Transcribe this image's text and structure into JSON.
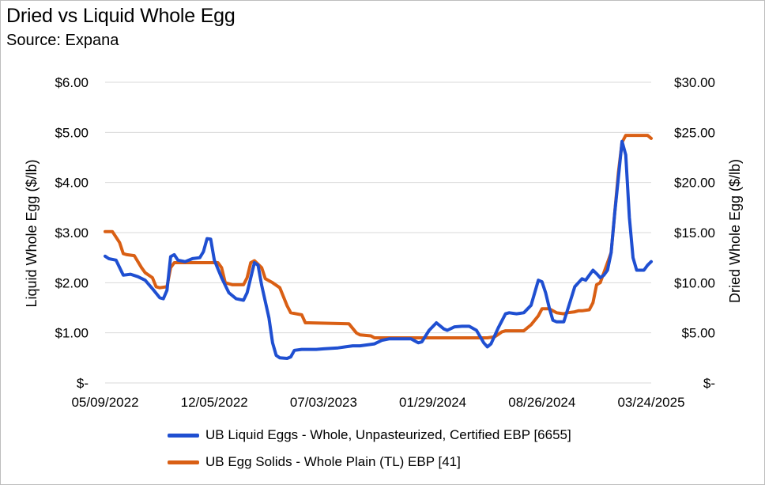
{
  "title": "Dried vs Liquid Whole Egg",
  "subtitle": "Source: Expana",
  "colors": {
    "liquid": "#1f4fd1",
    "dried": "#d95f14",
    "grid": "#d9d9d9"
  },
  "chart_data": {
    "type": "line",
    "title": "Dried vs Liquid Whole Egg",
    "subtitle": "Source: Expana",
    "ylabel_left": "Liquid Whole Egg ($/lb)",
    "ylabel_right": "Dried Whole Egg ($/lb)",
    "ylim_left": [
      0,
      6
    ],
    "ylim_right": [
      0,
      30
    ],
    "yticks_left": [
      "$-",
      "$1.00",
      "$2.00",
      "$3.00",
      "$4.00",
      "$5.00",
      "$6.00"
    ],
    "yticks_right": [
      "$-",
      "$5.00",
      "$10.00",
      "$15.00",
      "$20.00",
      "$25.00",
      "$30.00"
    ],
    "xlim": [
      "2022-05-09",
      "2025-03-24"
    ],
    "xticks": [
      "05/09/2022",
      "12/05/2022",
      "07/03/2023",
      "01/29/2024",
      "08/26/2024",
      "03/24/2025"
    ],
    "grid": true,
    "legend_position": "bottom",
    "series": [
      {
        "name": "UB Liquid Eggs - Whole, Unpasteurized, Certified EBP [6655]",
        "axis": "left",
        "points": [
          [
            "2022-05-09",
            2.53
          ],
          [
            "2022-05-16",
            2.48
          ],
          [
            "2022-05-30",
            2.45
          ],
          [
            "2022-06-13",
            2.15
          ],
          [
            "2022-06-27",
            2.17
          ],
          [
            "2022-07-11",
            2.12
          ],
          [
            "2022-07-25",
            2.05
          ],
          [
            "2022-08-08",
            1.88
          ],
          [
            "2022-08-22",
            1.7
          ],
          [
            "2022-08-29",
            1.68
          ],
          [
            "2022-09-05",
            1.85
          ],
          [
            "2022-09-12",
            2.52
          ],
          [
            "2022-09-19",
            2.56
          ],
          [
            "2022-09-26",
            2.45
          ],
          [
            "2022-10-10",
            2.42
          ],
          [
            "2022-10-24",
            2.48
          ],
          [
            "2022-11-07",
            2.5
          ],
          [
            "2022-11-14",
            2.62
          ],
          [
            "2022-11-21",
            2.88
          ],
          [
            "2022-11-28",
            2.87
          ],
          [
            "2022-12-05",
            2.45
          ],
          [
            "2022-12-19",
            2.1
          ],
          [
            "2023-01-02",
            1.8
          ],
          [
            "2023-01-16",
            1.68
          ],
          [
            "2023-01-30",
            1.65
          ],
          [
            "2023-02-06",
            1.8
          ],
          [
            "2023-02-13",
            2.1
          ],
          [
            "2023-02-20",
            2.4
          ],
          [
            "2023-02-27",
            2.35
          ],
          [
            "2023-03-06",
            1.95
          ],
          [
            "2023-03-20",
            1.3
          ],
          [
            "2023-03-27",
            0.8
          ],
          [
            "2023-04-03",
            0.55
          ],
          [
            "2023-04-10",
            0.5
          ],
          [
            "2023-04-24",
            0.49
          ],
          [
            "2023-05-01",
            0.52
          ],
          [
            "2023-05-08",
            0.65
          ],
          [
            "2023-05-22",
            0.67
          ],
          [
            "2023-06-19",
            0.67
          ],
          [
            "2023-07-03",
            0.68
          ],
          [
            "2023-07-31",
            0.7
          ],
          [
            "2023-08-14",
            0.72
          ],
          [
            "2023-08-28",
            0.74
          ],
          [
            "2023-09-11",
            0.74
          ],
          [
            "2023-09-25",
            0.76
          ],
          [
            "2023-10-09",
            0.78
          ],
          [
            "2023-10-23",
            0.85
          ],
          [
            "2023-11-06",
            0.88
          ],
          [
            "2023-12-18",
            0.88
          ],
          [
            "2024-01-01",
            0.8
          ],
          [
            "2024-01-08",
            0.82
          ],
          [
            "2024-01-22",
            1.05
          ],
          [
            "2024-02-05",
            1.2
          ],
          [
            "2024-02-19",
            1.08
          ],
          [
            "2024-02-26",
            1.05
          ],
          [
            "2024-03-11",
            1.12
          ],
          [
            "2024-03-25",
            1.13
          ],
          [
            "2024-04-08",
            1.13
          ],
          [
            "2024-04-22",
            1.05
          ],
          [
            "2024-05-06",
            0.8
          ],
          [
            "2024-05-13",
            0.72
          ],
          [
            "2024-05-20",
            0.78
          ],
          [
            "2024-06-03",
            1.1
          ],
          [
            "2024-06-17",
            1.38
          ],
          [
            "2024-06-24",
            1.4
          ],
          [
            "2024-07-08",
            1.38
          ],
          [
            "2024-07-22",
            1.4
          ],
          [
            "2024-08-05",
            1.55
          ],
          [
            "2024-08-19",
            2.05
          ],
          [
            "2024-08-26",
            2.02
          ],
          [
            "2024-09-02",
            1.8
          ],
          [
            "2024-09-09",
            1.5
          ],
          [
            "2024-09-16",
            1.25
          ],
          [
            "2024-09-23",
            1.22
          ],
          [
            "2024-10-07",
            1.22
          ],
          [
            "2024-10-14",
            1.45
          ],
          [
            "2024-10-28",
            1.92
          ],
          [
            "2024-11-04",
            2.0
          ],
          [
            "2024-11-11",
            2.08
          ],
          [
            "2024-11-18",
            2.05
          ],
          [
            "2024-11-25",
            2.15
          ],
          [
            "2024-12-02",
            2.25
          ],
          [
            "2024-12-09",
            2.18
          ],
          [
            "2024-12-16",
            2.1
          ],
          [
            "2024-12-23",
            2.15
          ],
          [
            "2024-12-30",
            2.25
          ],
          [
            "2025-01-06",
            2.6
          ],
          [
            "2025-01-13",
            3.4
          ],
          [
            "2025-01-20",
            4.1
          ],
          [
            "2025-01-27",
            4.82
          ],
          [
            "2025-02-03",
            4.55
          ],
          [
            "2025-02-10",
            3.3
          ],
          [
            "2025-02-17",
            2.5
          ],
          [
            "2025-02-24",
            2.25
          ],
          [
            "2025-03-03",
            2.25
          ],
          [
            "2025-03-10",
            2.25
          ],
          [
            "2025-03-17",
            2.35
          ],
          [
            "2025-03-24",
            2.42
          ]
        ]
      },
      {
        "name": "UB Egg Solids - Whole Plain (TL) EBP [41]",
        "axis": "right",
        "points": [
          [
            "2022-05-09",
            15.1
          ],
          [
            "2022-05-23",
            15.1
          ],
          [
            "2022-06-06",
            14.0
          ],
          [
            "2022-06-13",
            12.9
          ],
          [
            "2022-06-20",
            12.8
          ],
          [
            "2022-07-04",
            12.7
          ],
          [
            "2022-07-18",
            11.5
          ],
          [
            "2022-07-25",
            11.0
          ],
          [
            "2022-08-08",
            10.5
          ],
          [
            "2022-08-15",
            9.6
          ],
          [
            "2022-08-22",
            9.5
          ],
          [
            "2022-09-05",
            9.6
          ],
          [
            "2022-09-12",
            11.5
          ],
          [
            "2022-09-19",
            12.0
          ],
          [
            "2022-10-03",
            12.0
          ],
          [
            "2022-12-12",
            12.0
          ],
          [
            "2022-12-19",
            11.5
          ],
          [
            "2022-12-26",
            10.0
          ],
          [
            "2023-01-09",
            9.8
          ],
          [
            "2023-01-30",
            9.8
          ],
          [
            "2023-02-06",
            10.5
          ],
          [
            "2023-02-13",
            12.0
          ],
          [
            "2023-02-20",
            12.2
          ],
          [
            "2023-03-06",
            11.5
          ],
          [
            "2023-03-13",
            10.4
          ],
          [
            "2023-03-27",
            10.0
          ],
          [
            "2023-04-10",
            9.5
          ],
          [
            "2023-04-24",
            7.7
          ],
          [
            "2023-05-01",
            7.0
          ],
          [
            "2023-05-22",
            6.8
          ],
          [
            "2023-05-29",
            6.0
          ],
          [
            "2023-06-05",
            6.0
          ],
          [
            "2023-08-21",
            5.9
          ],
          [
            "2023-09-04",
            5.0
          ],
          [
            "2023-09-11",
            4.8
          ],
          [
            "2023-10-02",
            4.7
          ],
          [
            "2023-10-09",
            4.5
          ],
          [
            "2024-05-13",
            4.5
          ],
          [
            "2024-05-27",
            4.6
          ],
          [
            "2024-06-10",
            5.1
          ],
          [
            "2024-06-17",
            5.2
          ],
          [
            "2024-07-22",
            5.2
          ],
          [
            "2024-08-05",
            5.8
          ],
          [
            "2024-08-19",
            6.7
          ],
          [
            "2024-08-26",
            7.4
          ],
          [
            "2024-09-09",
            7.4
          ],
          [
            "2024-09-23",
            7.0
          ],
          [
            "2024-10-07",
            6.9
          ],
          [
            "2024-10-14",
            7.0
          ],
          [
            "2024-10-28",
            7.1
          ],
          [
            "2024-11-04",
            7.2
          ],
          [
            "2024-11-11",
            7.2
          ],
          [
            "2024-11-25",
            7.3
          ],
          [
            "2024-12-02",
            8.0
          ],
          [
            "2024-12-09",
            9.8
          ],
          [
            "2024-12-16",
            10.0
          ],
          [
            "2024-12-30",
            12.0
          ],
          [
            "2025-01-06",
            13.0
          ],
          [
            "2025-01-13",
            17.0
          ],
          [
            "2025-01-20",
            21.0
          ],
          [
            "2025-01-27",
            24.0
          ],
          [
            "2025-02-03",
            24.7
          ],
          [
            "2025-02-10",
            24.7
          ],
          [
            "2025-03-17",
            24.7
          ],
          [
            "2025-03-24",
            24.4
          ]
        ]
      }
    ]
  }
}
